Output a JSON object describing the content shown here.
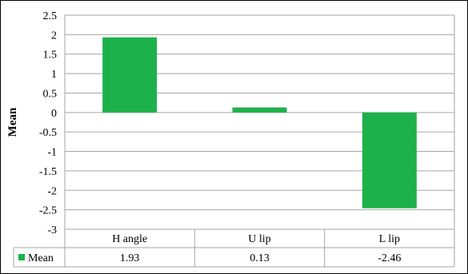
{
  "chart_data": {
    "type": "bar",
    "categories": [
      "H angle",
      "U lip",
      "L lip"
    ],
    "series": [
      {
        "name": "Mean",
        "values": [
          1.93,
          0.13,
          -2.46
        ]
      }
    ],
    "data_table_values": [
      "1.93",
      "0.13",
      "-2.46"
    ],
    "xlabel": "",
    "ylabel": "Mean",
    "ylim": [
      -3,
      2.5
    ],
    "yticks": [
      2.5,
      2,
      1.5,
      1,
      0.5,
      0,
      -0.5,
      -1,
      -1.5,
      -2,
      -2.5,
      -3
    ],
    "ytick_labels": [
      "2.5",
      "2",
      "1.5",
      "1",
      "0.5",
      "0",
      "-0.5",
      "-1",
      "-1.5",
      "-2",
      "-2.5",
      "-3"
    ],
    "grid": true,
    "legend": "in data table",
    "colors": {
      "bar": "#1db14b",
      "grid": "#a6a6a6",
      "frame": "#000000"
    }
  }
}
